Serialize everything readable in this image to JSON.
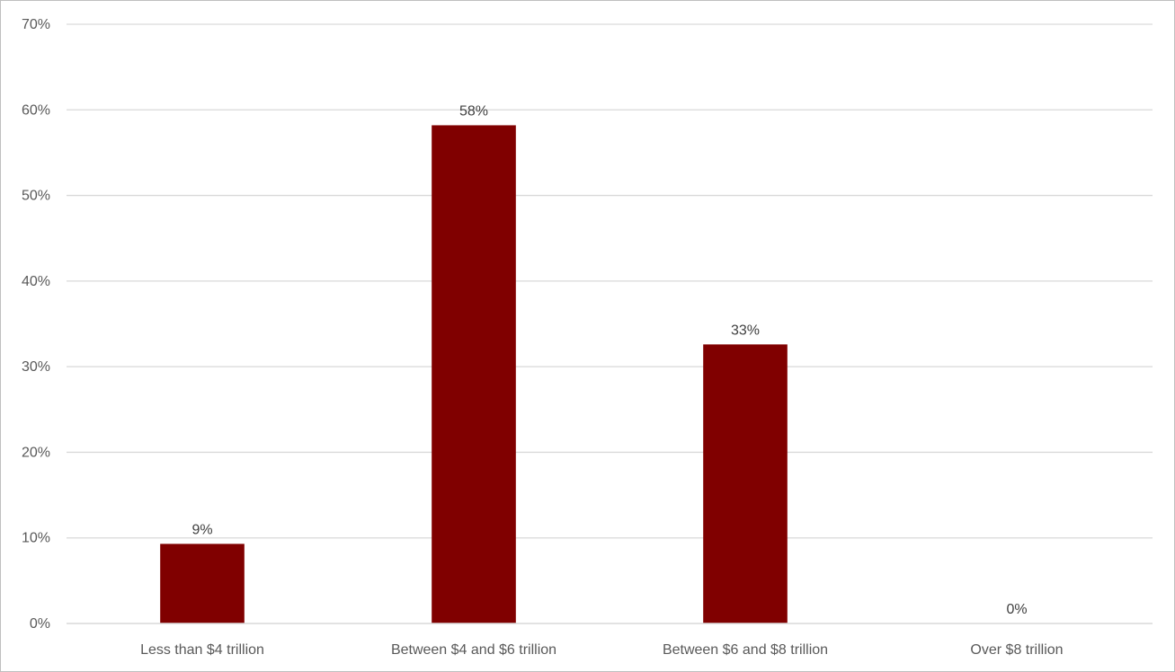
{
  "chart_data": {
    "type": "bar",
    "title": "",
    "xlabel": "",
    "ylabel": "",
    "categories": [
      "Less than $4 trillion",
      "Between $4 and $6 trillion",
      "Between $6 and $8 trillion",
      "Over $8 trillion"
    ],
    "values": [
      9.3,
      58.2,
      32.6,
      0
    ],
    "data_labels": [
      "9%",
      "58%",
      "33%",
      "0%"
    ],
    "ylim": [
      0,
      70
    ],
    "yticks": [
      0,
      10,
      20,
      30,
      40,
      50,
      60,
      70
    ],
    "ytick_labels": [
      "0%",
      "10%",
      "20%",
      "30%",
      "40%",
      "50%",
      "60%",
      "70%"
    ],
    "grid": true,
    "legend": "none",
    "bar_color": "#800000",
    "grid_color": "#d9d9d9"
  }
}
